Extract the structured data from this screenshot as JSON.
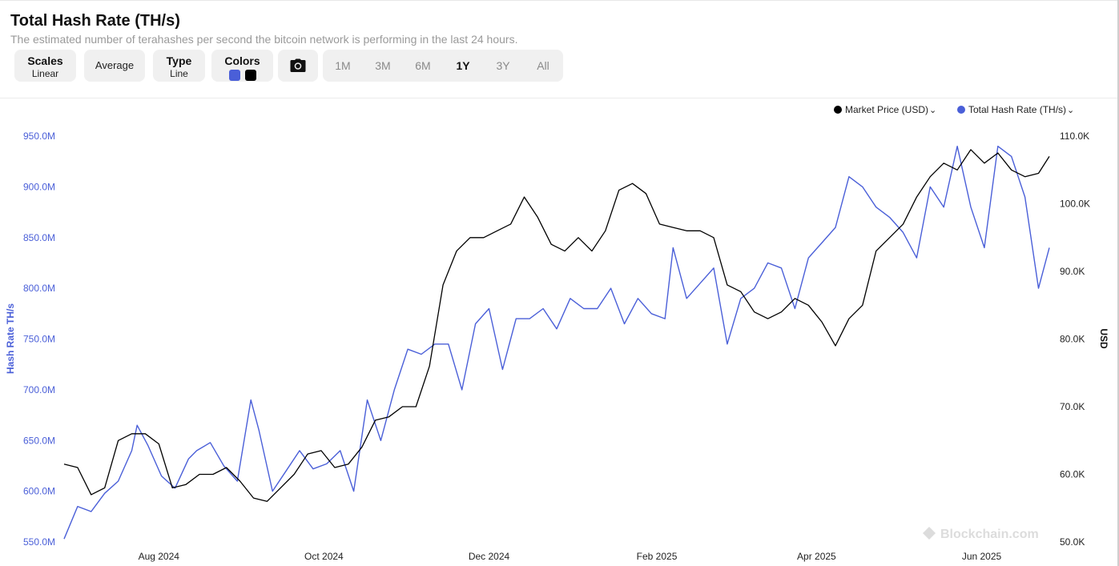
{
  "header": {
    "title": "Total Hash Rate (TH/s)",
    "subtitle": "The estimated number of terahashes per second the bitcoin network is performing in the last 24 hours."
  },
  "toolbar": {
    "scales_label": "Scales",
    "scales_value": "Linear",
    "average_label": "Average",
    "type_label": "Type",
    "type_value": "Line",
    "colors_label": "Colors",
    "color_hash": "#4a5fd8",
    "color_price": "#000000",
    "camera_icon": "camera-icon",
    "ranges": [
      "1M",
      "3M",
      "6M",
      "1Y",
      "3Y",
      "All"
    ],
    "active_range": "1Y"
  },
  "legend": {
    "price_label": "Market Price (USD)",
    "hash_label": "Total Hash Rate (TH/s)"
  },
  "watermark": "Blockchain.com",
  "chart_data": {
    "type": "line",
    "x_tick_labels": [
      "Aug 2024",
      "Oct 2024",
      "Dec 2024",
      "Feb 2025",
      "Apr 2025",
      "Jun 2025"
    ],
    "x_tick_dates": [
      "2024-08-01",
      "2024-10-01",
      "2024-12-01",
      "2025-02-01",
      "2025-04-01",
      "2025-06-01"
    ],
    "x_range": [
      "2024-06-27",
      "2025-06-26"
    ],
    "ylabel_left": "Hash Rate TH/s",
    "ylabel_right": "USD",
    "ylim_left": [
      550000000,
      950000000
    ],
    "ylim_right": [
      50000,
      110000
    ],
    "y_ticks_left": [
      "550.0M",
      "600.0M",
      "650.0M",
      "700.0M",
      "750.0M",
      "800.0M",
      "850.0M",
      "900.0M",
      "950.0M"
    ],
    "y_ticks_right": [
      "50.0K",
      "60.0K",
      "70.0K",
      "80.0K",
      "90.0K",
      "100.0K",
      "110.0K"
    ],
    "grid": false,
    "legend_position": "top-right",
    "series": [
      {
        "name": "Total Hash Rate (TH/s)",
        "axis": "left",
        "color": "#4a5fd8",
        "x": [
          "2024-06-27",
          "2024-07-02",
          "2024-07-07",
          "2024-07-12",
          "2024-07-17",
          "2024-07-22",
          "2024-07-24",
          "2024-07-28",
          "2024-08-02",
          "2024-08-07",
          "2024-08-12",
          "2024-08-15",
          "2024-08-20",
          "2024-08-25",
          "2024-08-30",
          "2024-09-04",
          "2024-09-07",
          "2024-09-12",
          "2024-09-17",
          "2024-09-22",
          "2024-09-27",
          "2024-10-02",
          "2024-10-07",
          "2024-10-12",
          "2024-10-17",
          "2024-10-22",
          "2024-10-27",
          "2024-11-01",
          "2024-11-06",
          "2024-11-11",
          "2024-11-16",
          "2024-11-21",
          "2024-11-26",
          "2024-12-01",
          "2024-12-06",
          "2024-12-11",
          "2024-12-16",
          "2024-12-21",
          "2024-12-26",
          "2024-12-31",
          "2025-01-05",
          "2025-01-10",
          "2025-01-15",
          "2025-01-20",
          "2025-01-25",
          "2025-01-30",
          "2025-02-04",
          "2025-02-07",
          "2025-02-12",
          "2025-02-17",
          "2025-02-22",
          "2025-02-27",
          "2025-03-04",
          "2025-03-09",
          "2025-03-14",
          "2025-03-19",
          "2025-03-24",
          "2025-03-29",
          "2025-04-03",
          "2025-04-08",
          "2025-04-13",
          "2025-04-18",
          "2025-04-23",
          "2025-04-28",
          "2025-05-03",
          "2025-05-08",
          "2025-05-13",
          "2025-05-18",
          "2025-05-23",
          "2025-05-28",
          "2025-06-02",
          "2025-06-07",
          "2025-06-12",
          "2025-06-17",
          "2025-06-22",
          "2025-06-26"
        ],
        "values": [
          553,
          585,
          580,
          598,
          610,
          640,
          665,
          645,
          615,
          603,
          632,
          640,
          648,
          625,
          610,
          690,
          660,
          600,
          620,
          640,
          622,
          627,
          640,
          600,
          690,
          650,
          700,
          740,
          735,
          745,
          745,
          700,
          765,
          780,
          720,
          770,
          770,
          780,
          760,
          790,
          780,
          780,
          800,
          765,
          790,
          775,
          770,
          840,
          790,
          805,
          820,
          745,
          790,
          800,
          825,
          820,
          780,
          830,
          845,
          860,
          910,
          900,
          880,
          870,
          855,
          830,
          900,
          880,
          940,
          880,
          840,
          940,
          930,
          890,
          800,
          840
        ],
        "note": "hash rate values in millions TH/s"
      },
      {
        "name": "Market Price (USD)",
        "axis": "right",
        "color": "#000000",
        "x": [
          "2024-06-27",
          "2024-07-02",
          "2024-07-07",
          "2024-07-12",
          "2024-07-17",
          "2024-07-22",
          "2024-07-27",
          "2024-08-01",
          "2024-08-06",
          "2024-08-11",
          "2024-08-16",
          "2024-08-21",
          "2024-08-26",
          "2024-08-31",
          "2024-09-05",
          "2024-09-10",
          "2024-09-15",
          "2024-09-20",
          "2024-09-25",
          "2024-09-30",
          "2024-10-05",
          "2024-10-10",
          "2024-10-15",
          "2024-10-20",
          "2024-10-25",
          "2024-10-30",
          "2024-11-04",
          "2024-11-09",
          "2024-11-14",
          "2024-11-19",
          "2024-11-24",
          "2024-11-29",
          "2024-12-04",
          "2024-12-09",
          "2024-12-14",
          "2024-12-19",
          "2024-12-24",
          "2024-12-29",
          "2025-01-03",
          "2025-01-08",
          "2025-01-13",
          "2025-01-18",
          "2025-01-23",
          "2025-01-28",
          "2025-02-02",
          "2025-02-07",
          "2025-02-12",
          "2025-02-17",
          "2025-02-22",
          "2025-02-27",
          "2025-03-04",
          "2025-03-09",
          "2025-03-14",
          "2025-03-19",
          "2025-03-24",
          "2025-03-29",
          "2025-04-03",
          "2025-04-08",
          "2025-04-13",
          "2025-04-18",
          "2025-04-23",
          "2025-04-28",
          "2025-05-03",
          "2025-05-08",
          "2025-05-13",
          "2025-05-18",
          "2025-05-23",
          "2025-05-28",
          "2025-06-02",
          "2025-06-07",
          "2025-06-12",
          "2025-06-17",
          "2025-06-22",
          "2025-06-26"
        ],
        "values": [
          61500,
          61000,
          57000,
          58000,
          65000,
          66000,
          66000,
          64500,
          58000,
          58500,
          60000,
          60000,
          61000,
          59000,
          56500,
          56000,
          58000,
          60000,
          63000,
          63500,
          61000,
          61500,
          64000,
          68000,
          68500,
          70000,
          70000,
          76000,
          88000,
          93000,
          95000,
          95000,
          96000,
          97000,
          101000,
          98000,
          94000,
          93000,
          95000,
          93000,
          96000,
          102000,
          103000,
          101500,
          97000,
          96500,
          96000,
          96000,
          95000,
          88000,
          87000,
          84000,
          83000,
          84000,
          86000,
          85000,
          82500,
          79000,
          83000,
          85000,
          93000,
          95000,
          97000,
          101000,
          104000,
          106000,
          105000,
          108000,
          106000,
          107500,
          105000,
          104000,
          104500,
          107000
        ]
      }
    ]
  }
}
